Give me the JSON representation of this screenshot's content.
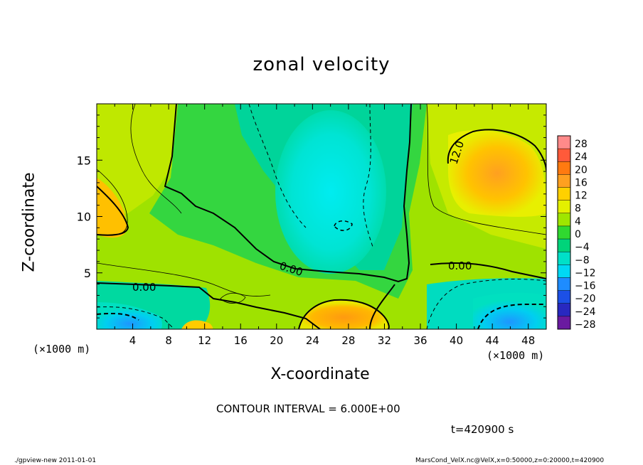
{
  "chart_data": {
    "type": "heatmap",
    "title": "zonal velocity",
    "xlabel": "X-coordinate",
    "ylabel": "Z-coordinate",
    "x_unit_label": "(×1000 m)",
    "xlim": [
      0,
      50
    ],
    "ylim": [
      0,
      20
    ],
    "x_ticks": [
      "4",
      "8",
      "12",
      "16",
      "20",
      "24",
      "28",
      "32",
      "36",
      "40",
      "44",
      "48"
    ],
    "y_ticks": [
      "5",
      "10",
      "15"
    ],
    "colorbar_labels": [
      "28",
      "24",
      "20",
      "16",
      "12",
      "8",
      "4",
      "0",
      "−4",
      "−8",
      "−12",
      "−16",
      "−20",
      "−24",
      "−28"
    ],
    "colorbar_colors": [
      "#ff8a8a",
      "#ff5a3a",
      "#ff7a10",
      "#ffa020",
      "#ffd000",
      "#e4f000",
      "#9fe600",
      "#30d830",
      "#00d47a",
      "#00e0c8",
      "#00d8f4",
      "#1e8cff",
      "#1c50e6",
      "#2828c0",
      "#6a1aa0"
    ],
    "contour_labels": [
      "12.0",
      "0.00",
      "0.00",
      "0.00"
    ],
    "contour_interval_text": "CONTOUR INTERVAL = 6.000E+00",
    "time_text": "t=420900 s"
  },
  "footer": {
    "left": "./gpview-new  2011-01-01",
    "right": "MarsCond_VelX.nc@VelX,x=0:50000,z=0:20000,t=420900"
  }
}
